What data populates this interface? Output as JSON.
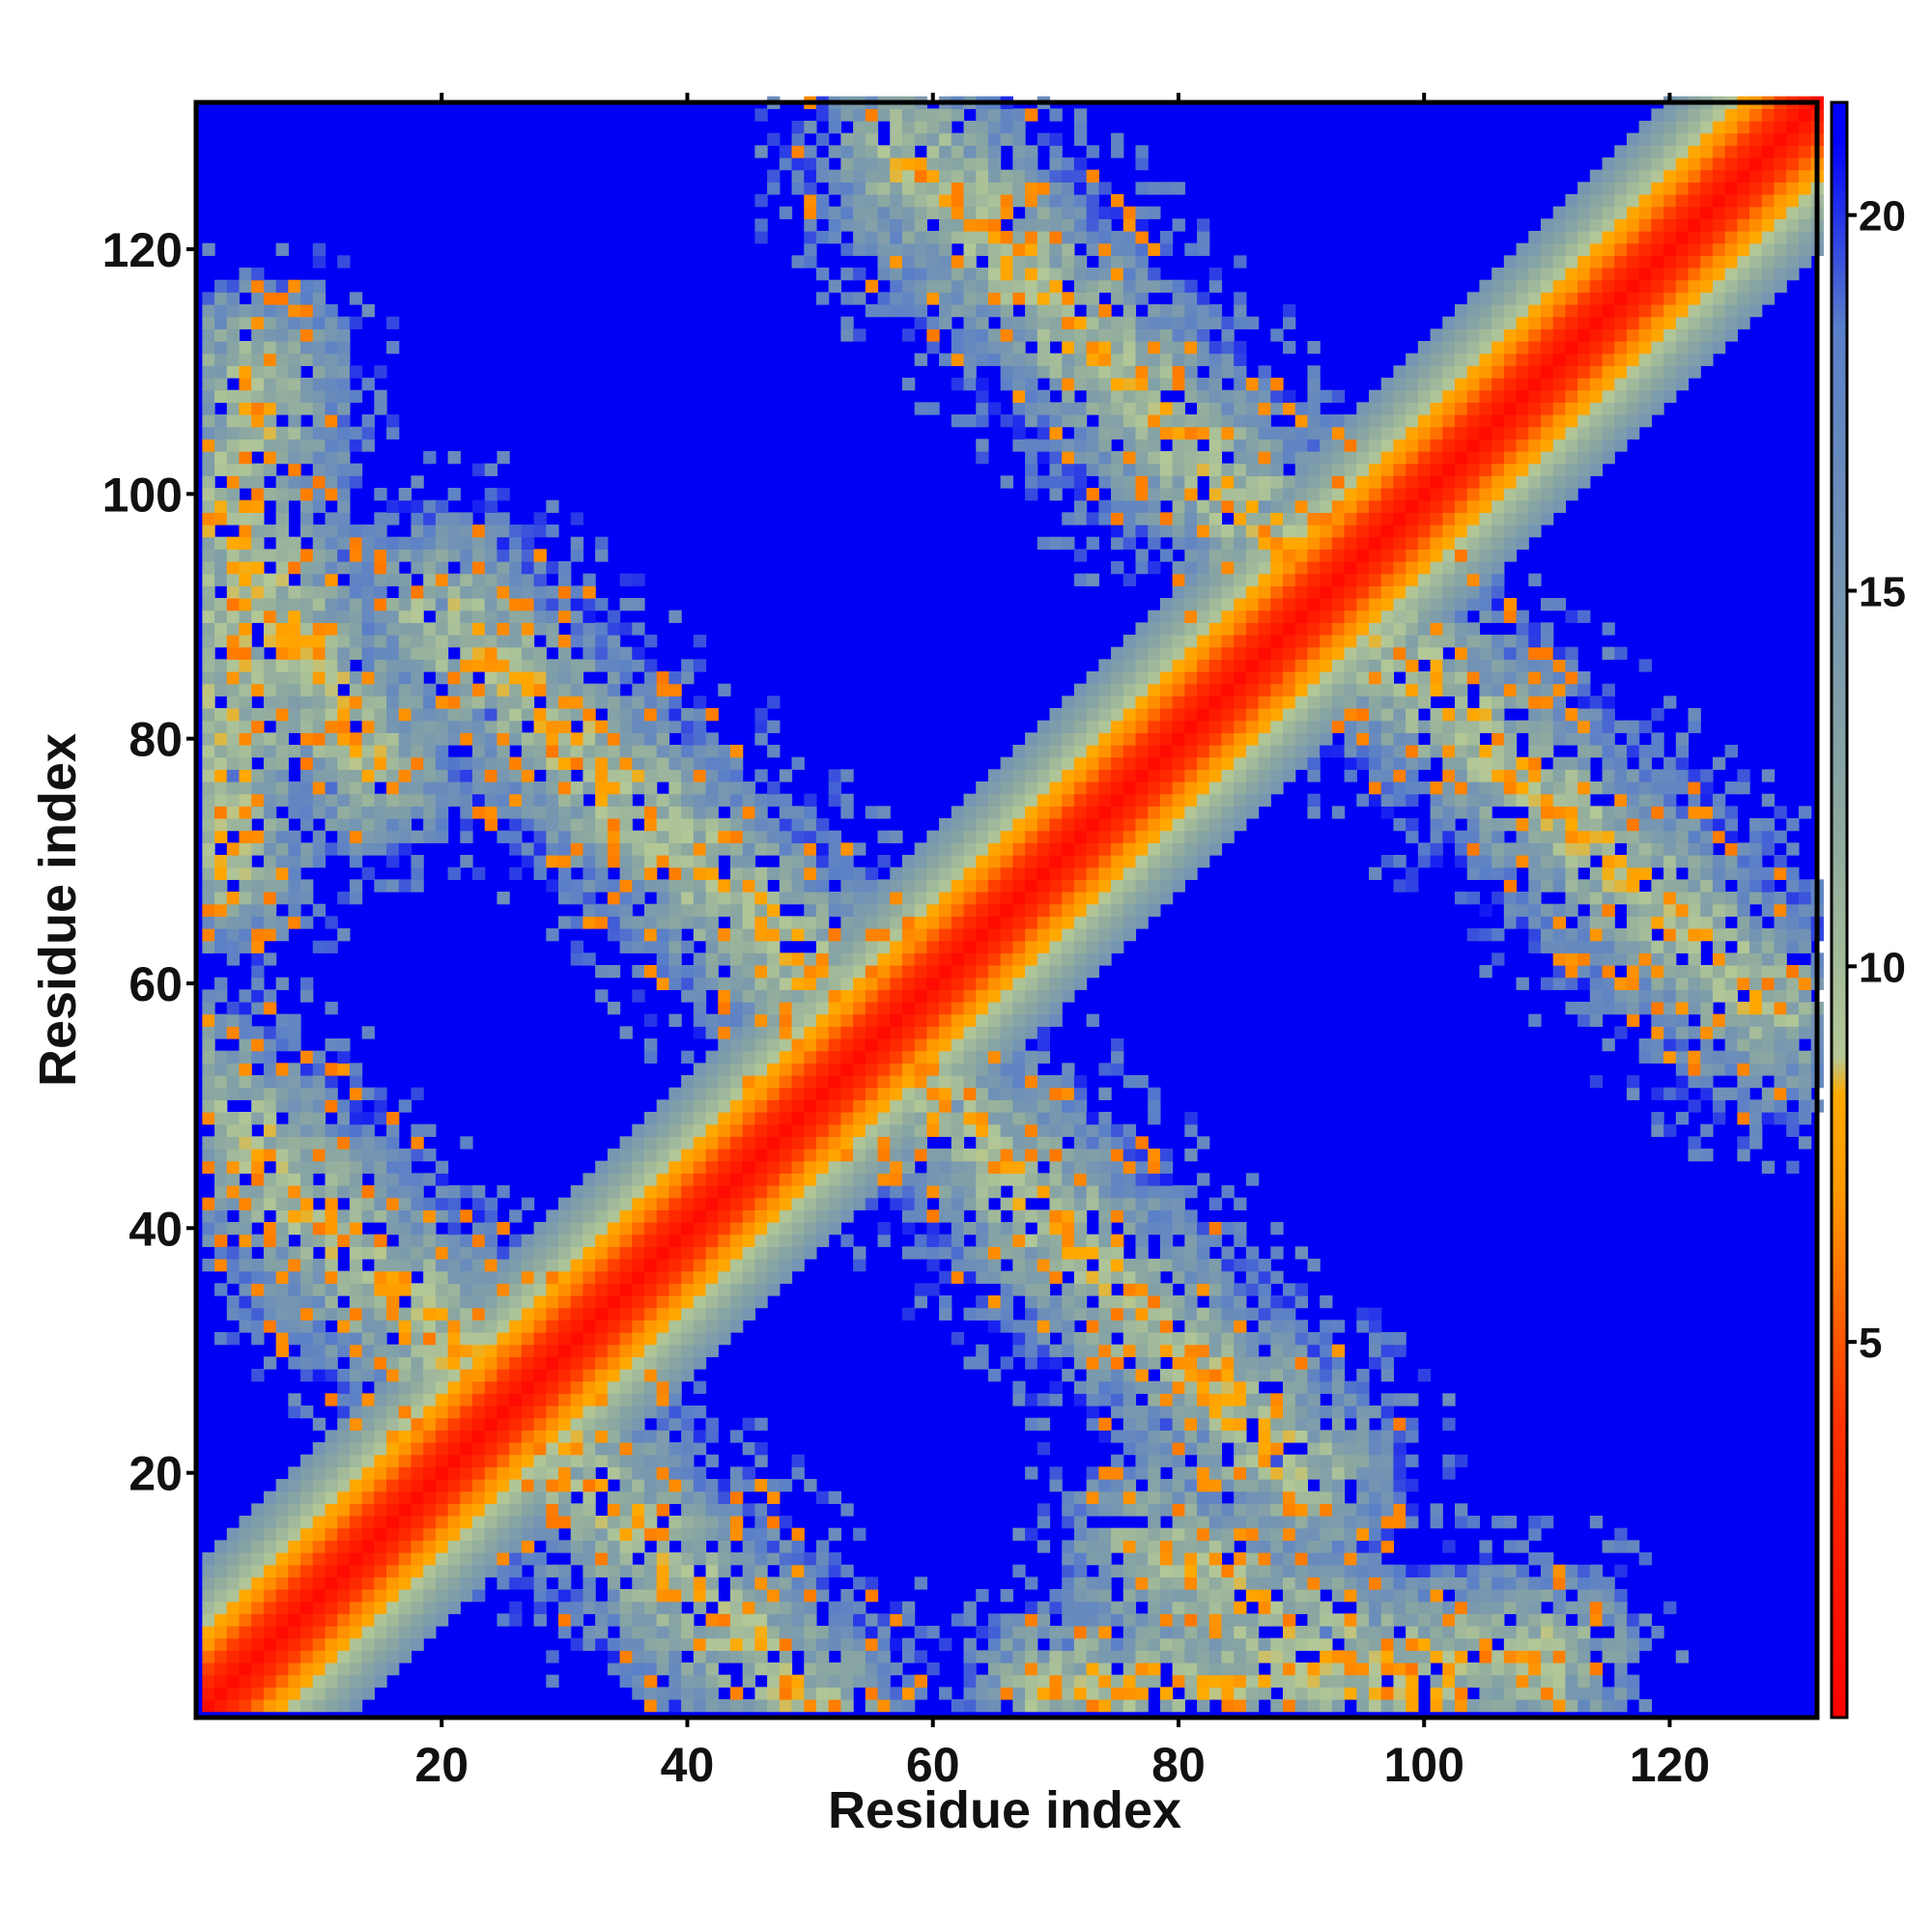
{
  "chart_data": {
    "type": "heatmap",
    "title": "",
    "xlabel": "Residue index",
    "ylabel": "Residue index",
    "xlim": [
      1,
      132
    ],
    "ylim": [
      1,
      132
    ],
    "x_ticks": [
      20,
      40,
      60,
      80,
      100,
      120
    ],
    "y_ticks": [
      20,
      40,
      60,
      80,
      100,
      120
    ],
    "colorbar": {
      "range": [
        0,
        21.5
      ],
      "ticks": [
        5,
        10,
        15,
        20
      ],
      "stops": [
        {
          "value": 0,
          "color": "#ff0000"
        },
        {
          "value": 4,
          "color": "#ff3300"
        },
        {
          "value": 7,
          "color": "#ff9900"
        },
        {
          "value": 8.3,
          "color": "#ffaa00"
        },
        {
          "value": 8.8,
          "color": "#b4c896"
        },
        {
          "value": 12,
          "color": "#8ca8a0"
        },
        {
          "value": 18.5,
          "color": "#5a7fc8"
        },
        {
          "value": 21,
          "color": "#0000ff"
        }
      ]
    },
    "background_color": "#0000f5",
    "symmetric": true,
    "description_of_values": "pairwise residue distance; red = near, blue = far (>21)",
    "bands": [
      {
        "from": [
          1,
          1
        ],
        "to": [
          132,
          132
        ],
        "kind": "main diagonal"
      },
      {
        "from": [
          1,
          50
        ],
        "to": [
          50,
          1
        ],
        "kind": "antiparallel contact"
      },
      {
        "from": [
          20,
          90
        ],
        "to": [
          56,
          55
        ],
        "kind": "antiparallel contact"
      },
      {
        "from": [
          58,
          128
        ],
        "to": [
          92,
          92
        ],
        "kind": "antiparallel contact"
      },
      {
        "from": [
          1,
          100
        ],
        "to": [
          14,
          78
        ],
        "kind": "contact patch"
      },
      {
        "from": [
          70,
          2
        ],
        "to": [
          110,
          5
        ],
        "kind": "contact patch"
      }
    ]
  }
}
